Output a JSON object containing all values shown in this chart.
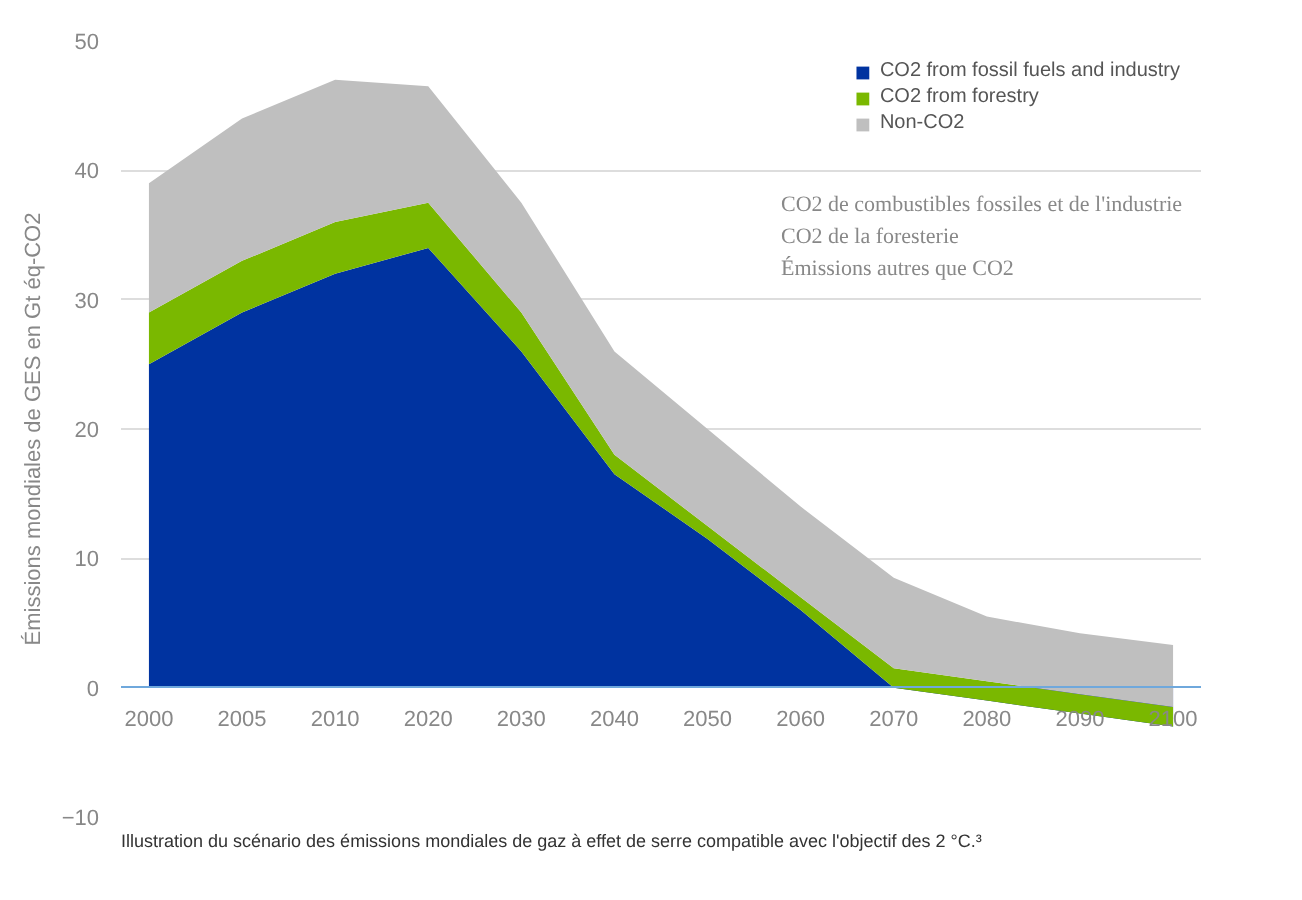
{
  "chart_data": {
    "type": "area",
    "stacked": true,
    "ylabel": "Émissions mondiales de GES en Gt éq-CO2",
    "categories": [
      "2000",
      "2005",
      "2010",
      "2020",
      "2030",
      "2040",
      "2050",
      "2060",
      "2070",
      "2080",
      "2090",
      "2100"
    ],
    "series": [
      {
        "name": "CO2 from fossil fuels and industry",
        "color": "#0033a0",
        "values": [
          25,
          29,
          32,
          34,
          26,
          16.5,
          11.5,
          6,
          0,
          -1,
          -2,
          -3
        ]
      },
      {
        "name": "CO2 from forestry",
        "color": "#7ab800",
        "values": [
          4,
          4,
          4,
          3.5,
          3,
          1.5,
          1,
          1,
          1.5,
          1.5,
          1.5,
          1.5
        ]
      },
      {
        "name": "Non-CO2",
        "color": "#bfbfbf",
        "values": [
          10,
          11,
          11,
          9,
          8.5,
          8,
          7.5,
          7,
          7,
          5,
          4.7,
          4.8
        ]
      }
    ],
    "ylim": [
      -10,
      50
    ],
    "yticks": [
      -10,
      0,
      10,
      20,
      30,
      40,
      50
    ],
    "grid": "y",
    "legend": "top right",
    "annotations": [
      "CO2 de combustibles fossiles et de l'industrie",
      "CO2 de la foresterie",
      "Émissions autres que CO2",
      "Illustration du scénario des émissions mondiales de gaz à effet de serre compatible avec l'objectif des 2 °C.³"
    ]
  }
}
